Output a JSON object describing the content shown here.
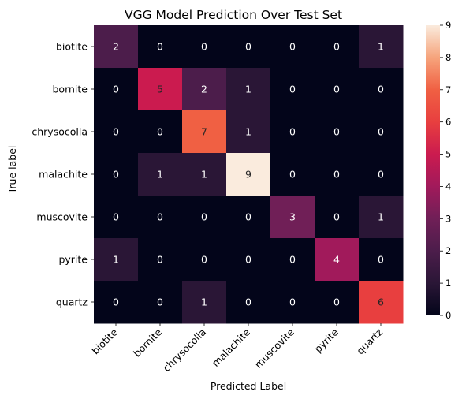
{
  "chart_data": {
    "type": "heatmap",
    "title": "VGG Model Prediction Over Test Set",
    "xlabel": "Predicted Label",
    "ylabel": "True label",
    "x_categories": [
      "biotite",
      "bornite",
      "chrysocolla",
      "malachite",
      "muscovite",
      "pyrite",
      "quartz"
    ],
    "y_categories": [
      "biotite",
      "bornite",
      "chrysocolla",
      "malachite",
      "muscovite",
      "pyrite",
      "quartz"
    ],
    "values": [
      [
        2,
        0,
        0,
        0,
        0,
        0,
        1
      ],
      [
        0,
        5,
        2,
        1,
        0,
        0,
        0
      ],
      [
        0,
        0,
        7,
        1,
        0,
        0,
        0
      ],
      [
        0,
        1,
        1,
        9,
        0,
        0,
        0
      ],
      [
        0,
        0,
        0,
        0,
        3,
        0,
        1
      ],
      [
        1,
        0,
        0,
        0,
        0,
        4,
        0
      ],
      [
        0,
        0,
        1,
        0,
        0,
        0,
        6
      ]
    ],
    "colorbar": {
      "range": [
        0,
        9
      ],
      "ticks": [
        "0",
        "1",
        "2",
        "3",
        "4",
        "5",
        "6",
        "7",
        "8",
        "9"
      ]
    },
    "colormap": "rocket",
    "colormap_stops": [
      "#03051a",
      "#2a1636",
      "#4c1d4b",
      "#701f57",
      "#a11a5b",
      "#cb1b4f",
      "#e83f3f",
      "#f06043",
      "#f6a47c",
      "#faebdd"
    ]
  }
}
